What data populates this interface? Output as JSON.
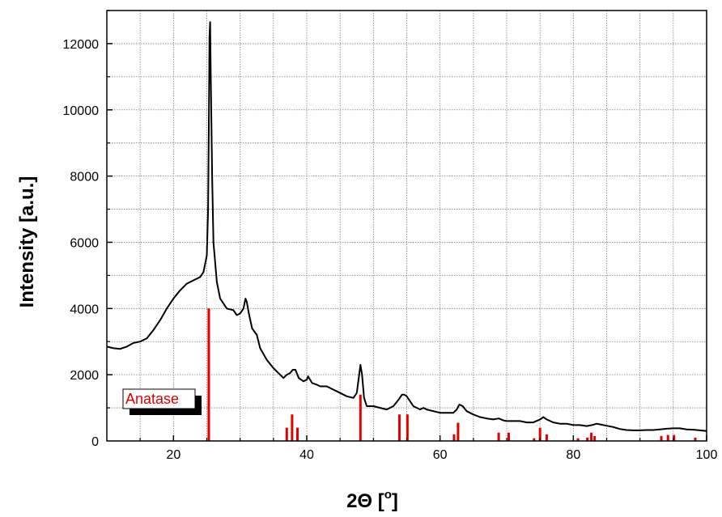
{
  "chart_data": {
    "type": "line",
    "title": "",
    "xlabel_main": "2Θ [",
    "xlabel_deg": "o",
    "xlabel_end": "]",
    "ylabel": "Intensity [a.u.]",
    "xlim": [
      10,
      100
    ],
    "ylim": [
      0,
      13000
    ],
    "x_ticks": [
      20,
      40,
      60,
      80,
      100
    ],
    "y_ticks": [
      0,
      2000,
      4000,
      6000,
      8000,
      10000,
      12000
    ],
    "x_grid": [
      10,
      15,
      20,
      25,
      30,
      35,
      40,
      45,
      50,
      55,
      60,
      65,
      70,
      75,
      80,
      85,
      90,
      95,
      100
    ],
    "y_grid": [
      1000,
      2000,
      3000,
      4000,
      5000,
      6000,
      7000,
      8000,
      9000,
      10000,
      11000,
      12000,
      13000
    ],
    "grid": true,
    "legend_position": "lower-left",
    "colors": {
      "pattern": "#000000",
      "reference": "#e00000",
      "grid": "#808080"
    },
    "series": [
      {
        "x": [
          10,
          11,
          12,
          13,
          14,
          15,
          16,
          17,
          18,
          19,
          20,
          21,
          22,
          23,
          24,
          24.5,
          25,
          25.2,
          25.3,
          25.4,
          25.5,
          25.6,
          25.8,
          26,
          26.5,
          27,
          28,
          29,
          29.5,
          30,
          30.5,
          30.8,
          31,
          31.3,
          31.8,
          32.5,
          33,
          34,
          35,
          36,
          36.5,
          37,
          37.5,
          37.9,
          38.3,
          38.8,
          39.5,
          40,
          40.2,
          40.8,
          41.5,
          42,
          42.5,
          43,
          44,
          45,
          46,
          47,
          47.5,
          47.8,
          48.05,
          48.3,
          48.6,
          49,
          50,
          51,
          52,
          53,
          53.8,
          54.3,
          54.6,
          55,
          55.5,
          56,
          57,
          57.5,
          58,
          59,
          60,
          61,
          62,
          62.5,
          62.9,
          63.4,
          64,
          65,
          66,
          67,
          68,
          68.8,
          69.5,
          70,
          71,
          72,
          73,
          74,
          75,
          75.5,
          76,
          77,
          78,
          79,
          80,
          81,
          82,
          82.8,
          83.5,
          84,
          85,
          86,
          87,
          88,
          89,
          90,
          91,
          92,
          93,
          94,
          95,
          96,
          97,
          98,
          99,
          100
        ],
        "y": [
          2850,
          2800,
          2780,
          2850,
          2960,
          3000,
          3100,
          3350,
          3650,
          4000,
          4300,
          4550,
          4750,
          4850,
          4950,
          5100,
          5600,
          7000,
          9500,
          12200,
          12650,
          11000,
          8000,
          6000,
          4800,
          4300,
          4000,
          3950,
          3800,
          3850,
          4000,
          4300,
          4200,
          3850,
          3400,
          3200,
          2800,
          2450,
          2200,
          2000,
          1900,
          2000,
          2050,
          2150,
          2150,
          1900,
          1800,
          1850,
          1950,
          1750,
          1700,
          1650,
          1650,
          1650,
          1550,
          1450,
          1350,
          1300,
          1450,
          1900,
          2300,
          2000,
          1300,
          1050,
          1050,
          1000,
          950,
          1050,
          1250,
          1400,
          1400,
          1350,
          1200,
          1050,
          950,
          1000,
          950,
          900,
          850,
          850,
          850,
          950,
          1100,
          1050,
          900,
          800,
          720,
          680,
          650,
          680,
          620,
          600,
          600,
          600,
          560,
          560,
          650,
          720,
          650,
          560,
          520,
          520,
          480,
          480,
          450,
          480,
          520,
          500,
          460,
          420,
          360,
          330,
          320,
          320,
          330,
          330,
          350,
          370,
          380,
          380,
          350,
          340,
          320,
          300
        ]
      }
    ],
    "reference": {
      "name": "Anatase",
      "x": [
        25.3,
        37.0,
        37.8,
        38.6,
        48.05,
        53.9,
        55.1,
        62.1,
        62.7,
        68.8,
        70.3,
        74.1,
        75.0,
        76.0,
        80.7,
        82.1,
        82.7,
        83.2,
        93.2,
        94.2,
        95.1,
        98.3
      ],
      "y": [
        4000,
        400,
        800,
        400,
        1400,
        800,
        800,
        200,
        550,
        250,
        250,
        80,
        400,
        200,
        80,
        100,
        250,
        150,
        150,
        180,
        180,
        100
      ]
    }
  }
}
